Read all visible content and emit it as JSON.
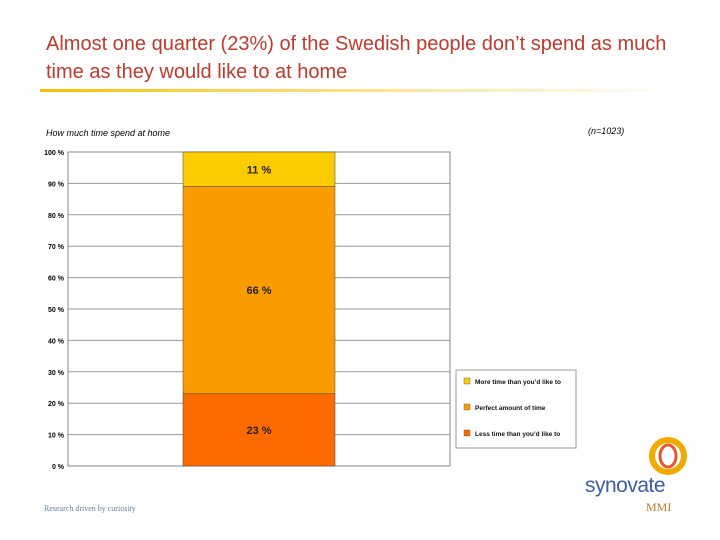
{
  "slide": {
    "title": "Almost one quarter (23%) of the Swedish people don’t spend as much time as they would like to at home",
    "tagline": "Research driven by curiosity",
    "brand_name": "synovate",
    "brand_sub": "MMI"
  },
  "colors": {
    "title": "#c0392b",
    "more_time": "#fccc00",
    "perfect": "#fa9b00",
    "less_time": "#fc6a00"
  },
  "chart_data": {
    "type": "bar",
    "stacked": true,
    "title": "How much time spend at home",
    "note": "(n=1023)",
    "ylim": [
      0,
      100
    ],
    "yticks": [
      {
        "value": 0,
        "label": "0 %"
      },
      {
        "value": 10,
        "label": "10 %"
      },
      {
        "value": 20,
        "label": "20 %"
      },
      {
        "value": 30,
        "label": "30 %"
      },
      {
        "value": 40,
        "label": "40 %"
      },
      {
        "value": 50,
        "label": "50 %"
      },
      {
        "value": 60,
        "label": "60 %"
      },
      {
        "value": 70,
        "label": "70 %"
      },
      {
        "value": 80,
        "label": "80 %"
      },
      {
        "value": 90,
        "label": "90 %"
      },
      {
        "value": 100,
        "label": "100 %"
      }
    ],
    "grid": true,
    "series": [
      {
        "name": "Less time than you’d like to",
        "value": 23,
        "label": "23 %",
        "color": "#fc6a00"
      },
      {
        "name": "Perfect amount of time",
        "value": 66,
        "label": "66 %",
        "color": "#fa9b00"
      },
      {
        "name": "More time than you’d like to",
        "value": 11,
        "label": "11 %",
        "color": "#fccc00"
      }
    ],
    "legend": {
      "position": "right",
      "entries": [
        {
          "label": "More time than you’d like to",
          "color": "#fccc00"
        },
        {
          "label": "Perfect amount of time",
          "color": "#fa9b00"
        },
        {
          "label": "Less time than you’d like to",
          "color": "#fc6a00"
        }
      ]
    }
  }
}
